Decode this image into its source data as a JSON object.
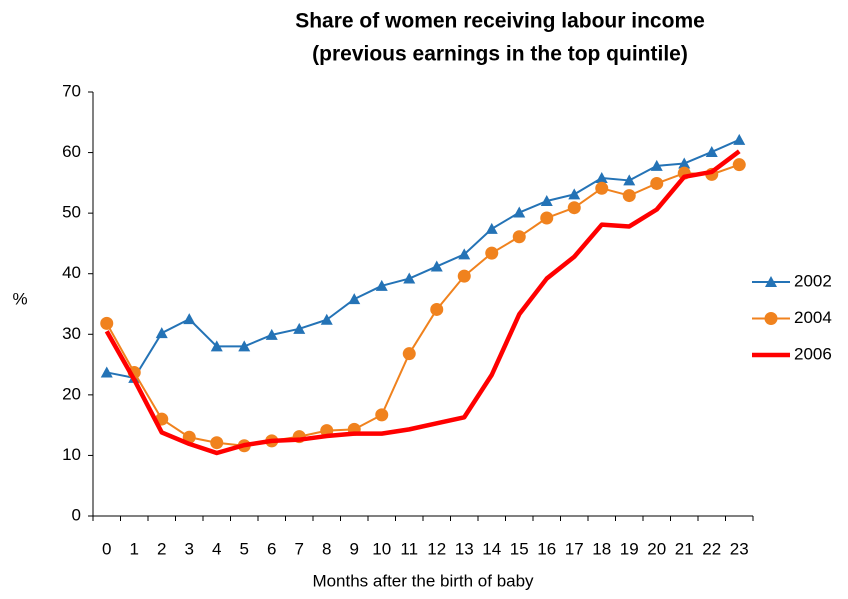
{
  "chart_data": {
    "type": "line",
    "title": [
      "Share of women receiving labour income",
      "(previous earnings in the top quintile)"
    ],
    "x_label": "Months after the birth of baby",
    "y_label": "%",
    "x": [
      0,
      1,
      2,
      3,
      4,
      5,
      6,
      7,
      8,
      9,
      10,
      11,
      12,
      13,
      14,
      15,
      16,
      17,
      18,
      19,
      20,
      21,
      22,
      23
    ],
    "ylim": [
      0,
      70
    ],
    "yticks": [
      0,
      10,
      20,
      30,
      40,
      50,
      60,
      70
    ],
    "grid": false,
    "legend": "right",
    "series": [
      {
        "name": "2002",
        "color": "#2473b6",
        "marker": "triangle",
        "width": 2,
        "values": [
          23.7,
          22.8,
          30.2,
          32.5,
          28.0,
          28.0,
          29.9,
          30.9,
          32.4,
          35.8,
          38.0,
          39.2,
          41.2,
          43.2,
          47.4,
          50.1,
          52.0,
          53.1,
          55.8,
          55.4,
          57.8,
          58.2,
          60.1,
          62.1
        ]
      },
      {
        "name": "2004",
        "color": "#f0821e",
        "marker": "circle",
        "width": 2,
        "values": [
          31.8,
          23.7,
          16.0,
          13.0,
          12.1,
          11.6,
          12.4,
          13.1,
          14.1,
          14.3,
          16.7,
          26.8,
          34.1,
          39.6,
          43.4,
          46.1,
          49.2,
          50.9,
          54.1,
          52.9,
          54.9,
          56.6,
          56.4,
          58.0
        ]
      },
      {
        "name": "2006",
        "color": "#ff0000",
        "marker": "none",
        "width": 4.5,
        "values": [
          30.5,
          22.5,
          13.8,
          11.9,
          10.4,
          11.7,
          12.4,
          12.6,
          13.2,
          13.6,
          13.6,
          14.3,
          15.3,
          16.3,
          23.3,
          33.3,
          39.2,
          42.8,
          48.1,
          47.8,
          50.6,
          56.0,
          56.8,
          60.2
        ]
      }
    ]
  }
}
